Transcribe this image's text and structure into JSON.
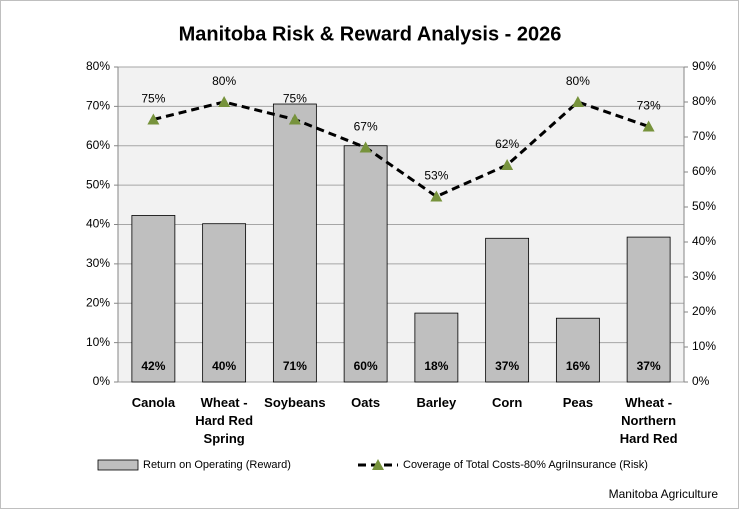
{
  "chart_data": {
    "type": "bar",
    "title": "Manitoba Risk & Reward Analysis - 2026",
    "categories": [
      "Canola",
      "Wheat -\nHard Red\nSpring",
      "Soybeans",
      "Oats",
      "Barley",
      "Corn",
      "Peas",
      "Wheat -\nNorthern\nHard Red"
    ],
    "series": [
      {
        "name": "Return on Operating (Reward)",
        "type": "bar",
        "color": "#bfbfbf",
        "values": [
          42.3,
          40.2,
          70.6,
          60,
          17.5,
          36.5,
          16.2,
          36.8
        ],
        "value_labels": [
          "42%",
          "40%",
          "71%",
          "60%",
          "18%",
          "37%",
          "16%",
          "37%"
        ]
      },
      {
        "name": "Coverage of Total Costs-80% AgriInsurance (Risk)",
        "type": "line",
        "axis": "y2",
        "color": "#000000",
        "marker_color": "#77933c",
        "values": [
          75,
          80,
          75,
          67,
          53,
          62,
          80,
          73
        ],
        "value_labels": [
          "75%",
          "80%",
          "75%",
          "67%",
          "53%",
          "62%",
          "80%",
          "73%"
        ]
      }
    ],
    "ylim": [
      0,
      80
    ],
    "yticks": [
      {
        "value": 0,
        "label": "0%"
      },
      {
        "value": 10,
        "label": "10%"
      },
      {
        "value": 20,
        "label": "20%"
      },
      {
        "value": 30,
        "label": "30%"
      },
      {
        "value": 40,
        "label": "40%"
      },
      {
        "value": 50,
        "label": "50%"
      },
      {
        "value": 60,
        "label": "60%"
      },
      {
        "value": 70,
        "label": "70%"
      },
      {
        "value": 80,
        "label": "80%"
      }
    ],
    "y2lim": [
      0,
      90
    ],
    "y2ticks": [
      {
        "value": 0,
        "label": "0%"
      },
      {
        "value": 10,
        "label": "10%"
      },
      {
        "value": 20,
        "label": "20%"
      },
      {
        "value": 30,
        "label": "30%"
      },
      {
        "value": 40,
        "label": "40%"
      },
      {
        "value": 50,
        "label": "50%"
      },
      {
        "value": 60,
        "label": "60%"
      },
      {
        "value": 70,
        "label": "70%"
      },
      {
        "value": 80,
        "label": "80%"
      },
      {
        "value": 90,
        "label": "90%"
      }
    ],
    "grid": true,
    "legend": "bottom",
    "source": "Manitoba Agriculture"
  }
}
